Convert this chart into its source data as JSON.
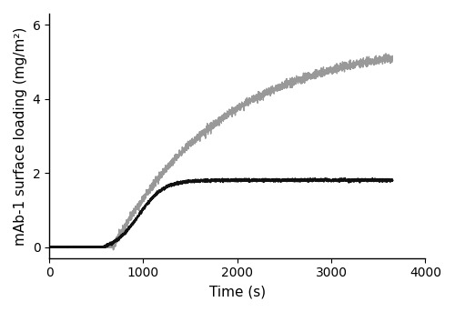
{
  "title": "",
  "xlabel": "Time (s)",
  "ylabel": "mAb-1 surface loading (mg/m²)",
  "xlim": [
    0,
    4000
  ],
  "ylim": [
    -0.3,
    6.3
  ],
  "yticks": [
    0,
    2,
    4,
    6
  ],
  "xticks": [
    0,
    1000,
    2000,
    3000,
    4000
  ],
  "gray_line": {
    "color": "#999999",
    "t_start": 680,
    "plateau": 5.55,
    "k": 0.00085,
    "noise_amp": 0.055,
    "lw": 1.0
  },
  "black_line": {
    "color": "#111111",
    "t_inflect": 950,
    "t_start": 660,
    "plateau": 1.9,
    "k_sigmoid": 0.0075,
    "noise_amp": 0.018,
    "lw": 1.4
  },
  "n_points": 3600,
  "t_max": 3650,
  "background_color": "#ffffff",
  "spine_color": "#000000",
  "tick_fontsize": 10,
  "label_fontsize": 11
}
